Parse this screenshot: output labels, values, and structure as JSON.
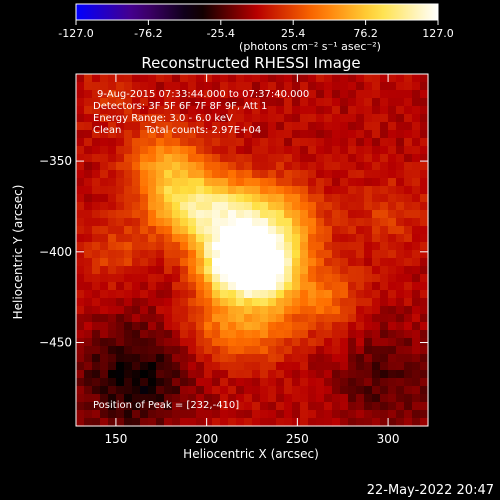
{
  "chart_data": {
    "type": "heatmap",
    "title": "Reconstructed RHESSI Image",
    "annotations": {
      "time_range": "9-Aug-2015 07:33:44.000 to 07:37:40.000",
      "detectors": "Detectors: 3F 5F 6F 7F 8F 9F, Att 1",
      "energy_range": "Energy Range: 3.0 - 6.0 keV",
      "algorithm": "Clean",
      "total_counts": "Total counts: 2.97E+04",
      "peak_position": "Position of Peak = [232,-410]"
    },
    "xlabel": "Heliocentric X (arcsec)",
    "ylabel": "Heliocentric Y (arcsec)",
    "xlim": [
      128,
      322
    ],
    "ylim": [
      -496,
      -302
    ],
    "x_ticks": [
      150,
      200,
      250,
      300
    ],
    "y_ticks": [
      -350,
      -400,
      -450
    ],
    "colorbar": {
      "min": -127.0,
      "max": 127.0,
      "tick_labels": [
        "-127.0",
        "-76.2",
        "-25.4",
        "25.4",
        "76.2",
        "127.0"
      ],
      "unit_label": "(photons cm⁻² s⁻¹ asec⁻²)",
      "colors": [
        "#0000ff",
        "#4b0082",
        "#000000",
        "#b80000",
        "#ff7000",
        "#ffe040",
        "#ffffff"
      ]
    },
    "sources": [
      {
        "x": 232,
        "y": -410,
        "peak": 127,
        "sigma": 12
      },
      {
        "x": 213,
        "y": -408,
        "peak": 100,
        "sigma": 12
      },
      {
        "x": 210,
        "y": -382,
        "peak": 90,
        "sigma": 16
      },
      {
        "x": 240,
        "y": -385,
        "peak": 70,
        "sigma": 16
      },
      {
        "x": 185,
        "y": -372,
        "peak": 60,
        "sigma": 15
      },
      {
        "x": 175,
        "y": -350,
        "peak": 45,
        "sigma": 14
      },
      {
        "x": 230,
        "y": -440,
        "peak": 40,
        "sigma": 14
      },
      {
        "x": 265,
        "y": -425,
        "peak": 40,
        "sigma": 14
      },
      {
        "x": 205,
        "y": -440,
        "peak": 35,
        "sigma": 14
      },
      {
        "x": 150,
        "y": -400,
        "peak": 25,
        "sigma": 12
      },
      {
        "x": 300,
        "y": -380,
        "peak": 20,
        "sigma": 14
      },
      {
        "x": 160,
        "y": -470,
        "peak": -40,
        "sigma": 22
      },
      {
        "x": 300,
        "y": -470,
        "peak": -25,
        "sigma": 20
      },
      {
        "x": 145,
        "y": -315,
        "peak": 15,
        "sigma": 12
      }
    ],
    "grid": false
  },
  "footer_date": "22-May-2022 20:47"
}
